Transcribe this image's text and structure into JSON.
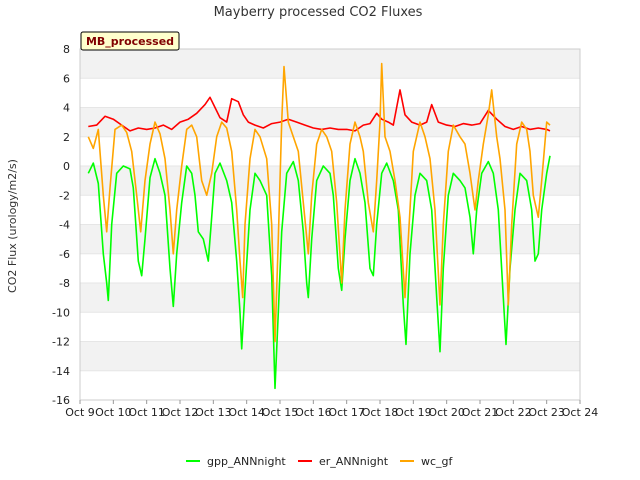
{
  "chart_data": {
    "type": "line",
    "title": "Mayberry processed CO2 Fluxes",
    "xlabel": "",
    "ylabel": "CO2 Flux (urology/m2/s)",
    "tag": "MB_processed",
    "xlim": [
      9,
      24
    ],
    "ylim": [
      -16,
      8
    ],
    "x_ticks": [
      9,
      10,
      11,
      12,
      13,
      14,
      15,
      16,
      17,
      18,
      19,
      20,
      21,
      22,
      23,
      24
    ],
    "x_tick_labels": [
      "Oct 9",
      "Oct 10",
      "Oct 11",
      "Oct 12",
      "Oct 13",
      "Oct 14",
      "Oct 15",
      "Oct 16",
      "Oct 17",
      "Oct 18",
      "Oct 19",
      "Oct 20",
      "Oct 21",
      "Oct 22",
      "Oct 23",
      "Oct 24"
    ],
    "y_ticks": [
      8,
      6,
      4,
      2,
      0,
      -2,
      -4,
      -6,
      -8,
      -10,
      -12,
      -14,
      -16
    ],
    "grid": true,
    "legend_position": "bottom",
    "series": [
      {
        "name": "gpp_ANNnight",
        "color": "#00ff00",
        "points": [
          [
            9.25,
            -0.5
          ],
          [
            9.4,
            0.2
          ],
          [
            9.55,
            -1.2
          ],
          [
            9.7,
            -6.0
          ],
          [
            9.8,
            -8.0
          ],
          [
            9.85,
            -9.2
          ],
          [
            9.95,
            -4.0
          ],
          [
            10.1,
            -0.5
          ],
          [
            10.3,
            0.0
          ],
          [
            10.5,
            -0.2
          ],
          [
            10.6,
            -1.5
          ],
          [
            10.75,
            -6.5
          ],
          [
            10.85,
            -7.5
          ],
          [
            10.95,
            -5.0
          ],
          [
            11.1,
            -0.8
          ],
          [
            11.25,
            0.5
          ],
          [
            11.4,
            -0.5
          ],
          [
            11.55,
            -2.0
          ],
          [
            11.7,
            -7.0
          ],
          [
            11.8,
            -9.6
          ],
          [
            11.9,
            -6.0
          ],
          [
            12.05,
            -2.5
          ],
          [
            12.2,
            0.0
          ],
          [
            12.35,
            -0.5
          ],
          [
            12.45,
            -2.0
          ],
          [
            12.55,
            -4.5
          ],
          [
            12.7,
            -5.0
          ],
          [
            12.85,
            -6.5
          ],
          [
            12.95,
            -3.5
          ],
          [
            13.05,
            -0.5
          ],
          [
            13.2,
            0.2
          ],
          [
            13.4,
            -1.0
          ],
          [
            13.55,
            -2.5
          ],
          [
            13.7,
            -6.5
          ],
          [
            13.8,
            -10.0
          ],
          [
            13.85,
            -12.5
          ],
          [
            13.95,
            -8.5
          ],
          [
            14.1,
            -3.0
          ],
          [
            14.25,
            -0.5
          ],
          [
            14.4,
            -1.0
          ],
          [
            14.6,
            -2.0
          ],
          [
            14.75,
            -7.5
          ],
          [
            14.85,
            -15.2
          ],
          [
            14.95,
            -10.0
          ],
          [
            15.05,
            -4.5
          ],
          [
            15.2,
            -0.5
          ],
          [
            15.4,
            0.3
          ],
          [
            15.55,
            -1.0
          ],
          [
            15.7,
            -4.5
          ],
          [
            15.8,
            -8.0
          ],
          [
            15.85,
            -9.0
          ],
          [
            15.95,
            -5.0
          ],
          [
            16.1,
            -1.0
          ],
          [
            16.3,
            0.0
          ],
          [
            16.5,
            -0.5
          ],
          [
            16.6,
            -2.0
          ],
          [
            16.75,
            -7.0
          ],
          [
            16.85,
            -8.5
          ],
          [
            16.95,
            -5.0
          ],
          [
            17.1,
            -1.0
          ],
          [
            17.25,
            0.5
          ],
          [
            17.4,
            -0.5
          ],
          [
            17.55,
            -2.5
          ],
          [
            17.7,
            -7.0
          ],
          [
            17.8,
            -7.5
          ],
          [
            17.9,
            -4.0
          ],
          [
            18.05,
            -0.5
          ],
          [
            18.2,
            0.2
          ],
          [
            18.4,
            -1.0
          ],
          [
            18.55,
            -3.0
          ],
          [
            18.7,
            -9.5
          ],
          [
            18.78,
            -12.2
          ],
          [
            18.9,
            -6.0
          ],
          [
            19.05,
            -2.0
          ],
          [
            19.2,
            -0.5
          ],
          [
            19.4,
            -1.0
          ],
          [
            19.55,
            -3.0
          ],
          [
            19.7,
            -9.0
          ],
          [
            19.8,
            -12.7
          ],
          [
            19.9,
            -7.0
          ],
          [
            20.05,
            -2.0
          ],
          [
            20.2,
            -0.5
          ],
          [
            20.4,
            -1.0
          ],
          [
            20.55,
            -1.5
          ],
          [
            20.7,
            -3.5
          ],
          [
            20.8,
            -6.0
          ],
          [
            20.9,
            -3.0
          ],
          [
            21.05,
            -0.5
          ],
          [
            21.25,
            0.3
          ],
          [
            21.4,
            -0.5
          ],
          [
            21.55,
            -3.0
          ],
          [
            21.7,
            -9.0
          ],
          [
            21.78,
            -12.2
          ],
          [
            21.9,
            -7.0
          ],
          [
            22.05,
            -3.0
          ],
          [
            22.2,
            -0.5
          ],
          [
            22.4,
            -1.0
          ],
          [
            22.55,
            -3.0
          ],
          [
            22.65,
            -6.5
          ],
          [
            22.75,
            -6.0
          ],
          [
            22.85,
            -3.0
          ],
          [
            23.0,
            -0.5
          ],
          [
            23.1,
            0.7
          ]
        ]
      },
      {
        "name": "er_ANNnight",
        "color": "#ff0000",
        "points": [
          [
            9.25,
            2.7
          ],
          [
            9.5,
            2.8
          ],
          [
            9.75,
            3.4
          ],
          [
            10.0,
            3.2
          ],
          [
            10.25,
            2.8
          ],
          [
            10.5,
            2.4
          ],
          [
            10.75,
            2.6
          ],
          [
            11.0,
            2.5
          ],
          [
            11.25,
            2.6
          ],
          [
            11.5,
            2.8
          ],
          [
            11.75,
            2.5
          ],
          [
            12.0,
            3.0
          ],
          [
            12.25,
            3.2
          ],
          [
            12.5,
            3.6
          ],
          [
            12.75,
            4.2
          ],
          [
            12.9,
            4.7
          ],
          [
            13.05,
            4.0
          ],
          [
            13.2,
            3.3
          ],
          [
            13.4,
            3.0
          ],
          [
            13.55,
            4.6
          ],
          [
            13.75,
            4.4
          ],
          [
            13.9,
            3.5
          ],
          [
            14.05,
            3.0
          ],
          [
            14.25,
            2.8
          ],
          [
            14.5,
            2.6
          ],
          [
            14.75,
            2.9
          ],
          [
            15.0,
            3.0
          ],
          [
            15.25,
            3.2
          ],
          [
            15.5,
            3.0
          ],
          [
            15.75,
            2.8
          ],
          [
            16.0,
            2.6
          ],
          [
            16.25,
            2.5
          ],
          [
            16.5,
            2.6
          ],
          [
            16.75,
            2.5
          ],
          [
            17.0,
            2.5
          ],
          [
            17.25,
            2.4
          ],
          [
            17.5,
            2.8
          ],
          [
            17.7,
            2.9
          ],
          [
            17.9,
            3.6
          ],
          [
            18.05,
            3.2
          ],
          [
            18.25,
            3.0
          ],
          [
            18.4,
            2.8
          ],
          [
            18.6,
            5.2
          ],
          [
            18.75,
            3.5
          ],
          [
            18.95,
            3.0
          ],
          [
            19.2,
            2.8
          ],
          [
            19.4,
            3.0
          ],
          [
            19.55,
            4.2
          ],
          [
            19.75,
            3.0
          ],
          [
            20.0,
            2.8
          ],
          [
            20.25,
            2.7
          ],
          [
            20.5,
            2.9
          ],
          [
            20.75,
            2.8
          ],
          [
            21.0,
            2.9
          ],
          [
            21.25,
            3.8
          ],
          [
            21.5,
            3.2
          ],
          [
            21.75,
            2.7
          ],
          [
            22.0,
            2.5
          ],
          [
            22.25,
            2.7
          ],
          [
            22.5,
            2.5
          ],
          [
            22.75,
            2.6
          ],
          [
            23.0,
            2.5
          ],
          [
            23.1,
            2.4
          ]
        ]
      },
      {
        "name": "wc_gf",
        "color": "#ffa500",
        "points": [
          [
            9.25,
            2.0
          ],
          [
            9.4,
            1.2
          ],
          [
            9.55,
            2.5
          ],
          [
            9.7,
            -2.0
          ],
          [
            9.8,
            -4.5
          ],
          [
            9.9,
            -1.5
          ],
          [
            10.05,
            2.5
          ],
          [
            10.25,
            2.8
          ],
          [
            10.4,
            2.3
          ],
          [
            10.55,
            1.0
          ],
          [
            10.7,
            -2.0
          ],
          [
            10.82,
            -4.5
          ],
          [
            10.95,
            -1.0
          ],
          [
            11.1,
            1.5
          ],
          [
            11.25,
            3.0
          ],
          [
            11.4,
            2.2
          ],
          [
            11.55,
            0.5
          ],
          [
            11.7,
            -3.0
          ],
          [
            11.8,
            -6.0
          ],
          [
            11.9,
            -3.0
          ],
          [
            12.05,
            0.0
          ],
          [
            12.2,
            2.5
          ],
          [
            12.35,
            2.8
          ],
          [
            12.5,
            2.0
          ],
          [
            12.65,
            -1.0
          ],
          [
            12.8,
            -2.0
          ],
          [
            12.95,
            -0.5
          ],
          [
            13.1,
            2.0
          ],
          [
            13.25,
            3.0
          ],
          [
            13.4,
            2.6
          ],
          [
            13.55,
            1.0
          ],
          [
            13.7,
            -3.0
          ],
          [
            13.8,
            -6.5
          ],
          [
            13.88,
            -9.0
          ],
          [
            13.95,
            -4.0
          ],
          [
            14.1,
            0.5
          ],
          [
            14.25,
            2.5
          ],
          [
            14.4,
            2.0
          ],
          [
            14.6,
            0.5
          ],
          [
            14.75,
            -4.0
          ],
          [
            14.85,
            -12.0
          ],
          [
            14.95,
            -5.0
          ],
          [
            15.05,
            3.0
          ],
          [
            15.12,
            6.8
          ],
          [
            15.25,
            3.0
          ],
          [
            15.4,
            2.0
          ],
          [
            15.55,
            1.0
          ],
          [
            15.7,
            -2.5
          ],
          [
            15.85,
            -6.0
          ],
          [
            15.95,
            -2.0
          ],
          [
            16.1,
            1.5
          ],
          [
            16.25,
            2.5
          ],
          [
            16.4,
            2.0
          ],
          [
            16.55,
            1.0
          ],
          [
            16.7,
            -2.5
          ],
          [
            16.85,
            -8.0
          ],
          [
            16.95,
            -3.0
          ],
          [
            17.1,
            1.5
          ],
          [
            17.25,
            3.0
          ],
          [
            17.4,
            2.0
          ],
          [
            17.5,
            1.0
          ],
          [
            17.65,
            -2.5
          ],
          [
            17.8,
            -4.5
          ],
          [
            17.9,
            -1.0
          ],
          [
            18.0,
            3.0
          ],
          [
            18.05,
            7.0
          ],
          [
            18.15,
            2.0
          ],
          [
            18.3,
            1.0
          ],
          [
            18.45,
            -1.0
          ],
          [
            18.6,
            -3.5
          ],
          [
            18.75,
            -9.0
          ],
          [
            18.85,
            -5.0
          ],
          [
            19.0,
            1.0
          ],
          [
            19.2,
            3.0
          ],
          [
            19.35,
            2.0
          ],
          [
            19.5,
            0.5
          ],
          [
            19.65,
            -3.0
          ],
          [
            19.8,
            -9.5
          ],
          [
            19.9,
            -4.0
          ],
          [
            20.05,
            1.0
          ],
          [
            20.2,
            2.8
          ],
          [
            20.4,
            2.0
          ],
          [
            20.55,
            1.5
          ],
          [
            20.7,
            -0.5
          ],
          [
            20.85,
            -3.0
          ],
          [
            20.95,
            -1.0
          ],
          [
            21.1,
            1.5
          ],
          [
            21.25,
            3.5
          ],
          [
            21.35,
            5.2
          ],
          [
            21.5,
            2.0
          ],
          [
            21.6,
            0.5
          ],
          [
            21.75,
            -3.0
          ],
          [
            21.85,
            -9.5
          ],
          [
            21.95,
            -4.0
          ],
          [
            22.1,
            1.5
          ],
          [
            22.25,
            3.0
          ],
          [
            22.4,
            2.5
          ],
          [
            22.5,
            1.0
          ],
          [
            22.6,
            -2.0
          ],
          [
            22.75,
            -3.5
          ],
          [
            22.85,
            -1.0
          ],
          [
            23.0,
            3.0
          ],
          [
            23.1,
            2.8
          ]
        ]
      }
    ]
  }
}
